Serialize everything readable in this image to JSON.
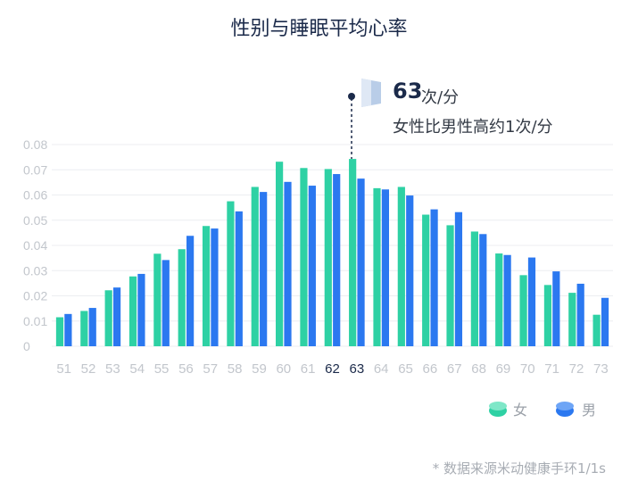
{
  "title": "性别与睡眠平均心率",
  "callout": {
    "value": "63",
    "unit": "次/分",
    "text": "女性比男性高约1次/分"
  },
  "legend": {
    "female_label": "女",
    "male_label": "男"
  },
  "source": "* 数据来源米动健康手环1/1s",
  "colors": {
    "female": "#2ed1a4",
    "male": "#2b78f0",
    "highlight": "#1b2a4a"
  },
  "chart_data": {
    "type": "bar",
    "title": "性别与睡眠平均心率",
    "xlabel": "",
    "ylabel": "",
    "ylim": [
      0,
      0.08
    ],
    "yticks": [
      "0",
      "0.01",
      "0.02",
      "0.03",
      "0.04",
      "0.05",
      "0.06",
      "0.07",
      "0.08"
    ],
    "highlighted_categories": [
      "62",
      "63"
    ],
    "categories": [
      "51",
      "52",
      "53",
      "54",
      "55",
      "56",
      "57",
      "58",
      "59",
      "60",
      "61",
      "62",
      "63",
      "64",
      "65",
      "66",
      "67",
      "68",
      "69",
      "70",
      "71",
      "72",
      "73"
    ],
    "series": [
      {
        "name": "女",
        "values": [
          0.0115,
          0.014,
          0.0222,
          0.0277,
          0.0367,
          0.0385,
          0.0477,
          0.0575,
          0.0632,
          0.0732,
          0.0707,
          0.0703,
          0.0743,
          0.0627,
          0.0632,
          0.0522,
          0.048,
          0.0455,
          0.0368,
          0.0282,
          0.0243,
          0.0212,
          0.0125
        ]
      },
      {
        "name": "男",
        "values": [
          0.0128,
          0.0152,
          0.0233,
          0.0287,
          0.0342,
          0.0438,
          0.0467,
          0.0535,
          0.0612,
          0.0652,
          0.0637,
          0.0683,
          0.0665,
          0.0622,
          0.0598,
          0.0543,
          0.0532,
          0.0445,
          0.0362,
          0.0352,
          0.0297,
          0.0248,
          0.0192
        ]
      }
    ]
  }
}
